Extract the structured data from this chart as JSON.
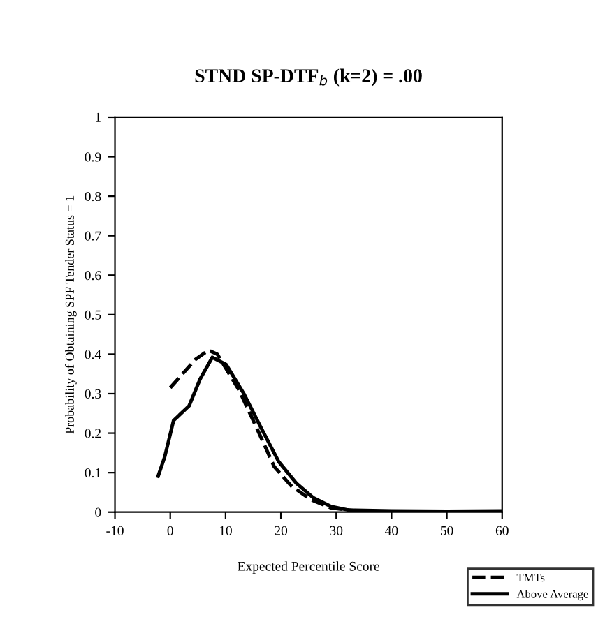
{
  "chart_data": {
    "type": "line",
    "title": "STND SP-DTF$_{b}$ (k=2) = .00",
    "xlabel": "Expected Percentile Score",
    "ylabel": "Probability of Obtaining SPF Tender Status = 1",
    "series": [
      {
        "name": "TMTs",
        "color": "#000000",
        "line_style": "dashed",
        "x": [
          0,
          4.5,
          6.9,
          8.5,
          12.4,
          15.6,
          18.8,
          21.9,
          25.4,
          29,
          33.6,
          40,
          50,
          60
        ],
        "values": [
          0.315,
          0.386,
          0.41,
          0.4,
          0.31,
          0.214,
          0.115,
          0.066,
          0.032,
          0.011,
          0.003,
          0.002,
          0.002,
          0.002
        ]
      },
      {
        "name": "Above Average",
        "color": "#000000",
        "line_style": "solid",
        "x": [
          -2.2,
          -1,
          0.6,
          3.4,
          5.4,
          7.6,
          10.1,
          13.3,
          16.4,
          19.6,
          22.8,
          25.9,
          29.1,
          32.3,
          40,
          50,
          60
        ],
        "values": [
          0.091,
          0.14,
          0.232,
          0.269,
          0.337,
          0.392,
          0.374,
          0.3,
          0.214,
          0.128,
          0.073,
          0.036,
          0.014,
          0.005,
          0.003,
          0.002,
          0.003
        ]
      }
    ],
    "xlim": [
      -10,
      60
    ],
    "xticks": [
      -10,
      0,
      10,
      20,
      30,
      40,
      50,
      60
    ],
    "ylim": [
      0,
      1
    ],
    "yticks": [
      0,
      0.1,
      0.2,
      0.3,
      0.4,
      0.5,
      0.6,
      0.7,
      0.8,
      0.9,
      1
    ],
    "legend": "bottom right",
    "grid": false
  }
}
